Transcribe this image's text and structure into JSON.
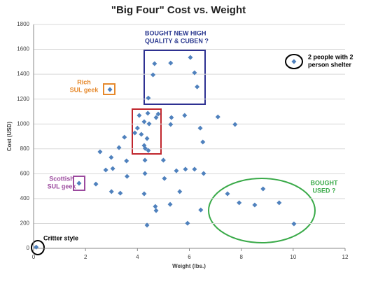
{
  "chart_data": {
    "type": "scatter",
    "title": "\"Big Four\" Cost vs. Weight",
    "x_label": "Weight (lbs.)",
    "y_label": "Cost (USD)",
    "color": "#4f81bd",
    "grid": true,
    "xlim": [
      0,
      12
    ],
    "xticks": [
      0,
      2,
      4,
      6,
      8,
      10,
      12
    ],
    "ylim": [
      0,
      1800
    ],
    "yticks": [
      0,
      200,
      400,
      600,
      800,
      1000,
      1200,
      1400,
      1600,
      1800
    ],
    "x": [
      0.1,
      1.75,
      2.94,
      10.03,
      2.56,
      2.4,
      2.78,
      2.99,
      3.05,
      3.0,
      3.34,
      3.29,
      3.5,
      3.58,
      3.6,
      3.9,
      4.0,
      4.07,
      4.15,
      4.26,
      4.26,
      4.29,
      4.29,
      4.3,
      4.4,
      4.42,
      4.37,
      4.42,
      4.45,
      4.26,
      4.37,
      4.6,
      4.66,
      4.72,
      4.69,
      4.72,
      4.8,
      5.0,
      5.04,
      5.28,
      5.28,
      5.31,
      5.26,
      5.5,
      5.63,
      5.82,
      5.85,
      5.93,
      6.04,
      6.2,
      6.2,
      6.3,
      6.42,
      6.44,
      6.52,
      6.55,
      7.1,
      7.76,
      7.47,
      7.92,
      8.52,
      8.84,
      9.46,
      10.03
    ],
    "values": [
      10,
      523,
      1277,
      1502,
      776,
      517,
      630,
      731,
      641,
      456,
      444,
      810,
      894,
      703,
      579,
      928,
      967,
      1069,
      917,
      1018,
      827,
      709,
      602,
      804,
      1086,
      787,
      883,
      1209,
      1001,
      439,
      186,
      1395,
      1485,
      1052,
      337,
      304,
      1080,
      709,
      562,
      1490,
      996,
      1052,
      354,
      624,
      456,
      1069,
      636,
      202,
      1535,
      1412,
      636,
      1299,
      967,
      309,
      855,
      602,
      1057,
      996,
      439,
      366,
      349,
      478,
      366,
      197
    ],
    "annotations": [
      {
        "text": [
          "BOUGHT NEW HIGH",
          "QUALITY & CUBEN ?"
        ],
        "color": "#2b3990"
      },
      {
        "text": [
          "2 people with 2",
          "person shelter"
        ],
        "color": "#000000"
      },
      {
        "text": [
          "Rich",
          "SUL geek"
        ],
        "color": "#e6892c"
      },
      {
        "text": [
          "Scottish",
          "SUL geek"
        ],
        "color": "#9b4a9e"
      },
      {
        "text": [
          "BOUGHT",
          "USED ?"
        ],
        "color": "#3aaa49"
      },
      {
        "text": [
          "Critter style"
        ],
        "color": "#000000"
      }
    ]
  }
}
